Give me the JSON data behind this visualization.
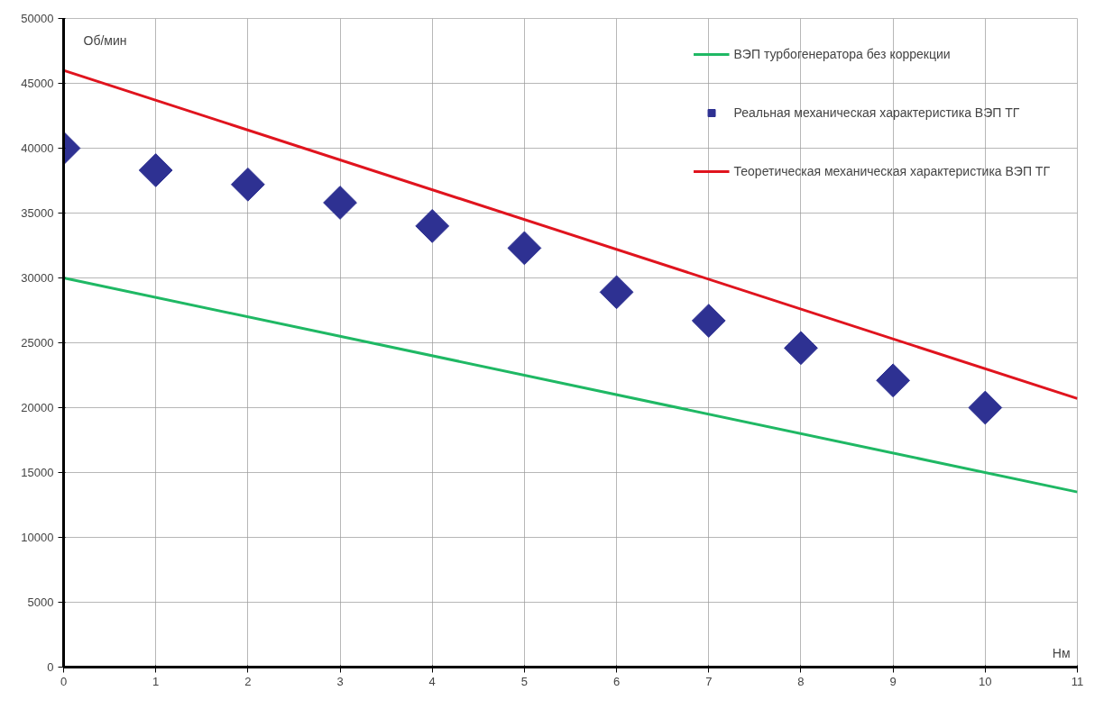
{
  "chart_data": {
    "type": "line",
    "xlabel": "Нм",
    "ylabel": "Об/мин",
    "xlim": [
      0,
      11
    ],
    "xticks": [
      0,
      1,
      2,
      3,
      4,
      5,
      6,
      7,
      8,
      9,
      10,
      11
    ],
    "ylim": [
      0,
      50000
    ],
    "yticks": [
      0,
      5000,
      10000,
      15000,
      20000,
      25000,
      30000,
      35000,
      40000,
      45000,
      50000
    ],
    "grid": true,
    "legend": "top right",
    "series": [
      {
        "name": "ВЭП турбогенератора без коррекции",
        "color": "#1fb864",
        "x": [
          0,
          11
        ],
        "values": [
          30000,
          13500
        ]
      },
      {
        "name": "Реальная механическая характеристика ВЭП ТГ",
        "type": "scatter",
        "marker": "diamond",
        "color": "#2e3192",
        "x": [
          0,
          1,
          2,
          3,
          4,
          5,
          6,
          7,
          8,
          9,
          10
        ],
        "values": [
          40000,
          38300,
          37200,
          35800,
          34000,
          32300,
          28900,
          26700,
          24600,
          22100,
          20000
        ]
      },
      {
        "name": "Теоретическая механическая характеристика ВЭП ТГ",
        "color": "#e0141e",
        "x": [
          0,
          11
        ],
        "values": [
          46000,
          20700
        ]
      }
    ]
  }
}
